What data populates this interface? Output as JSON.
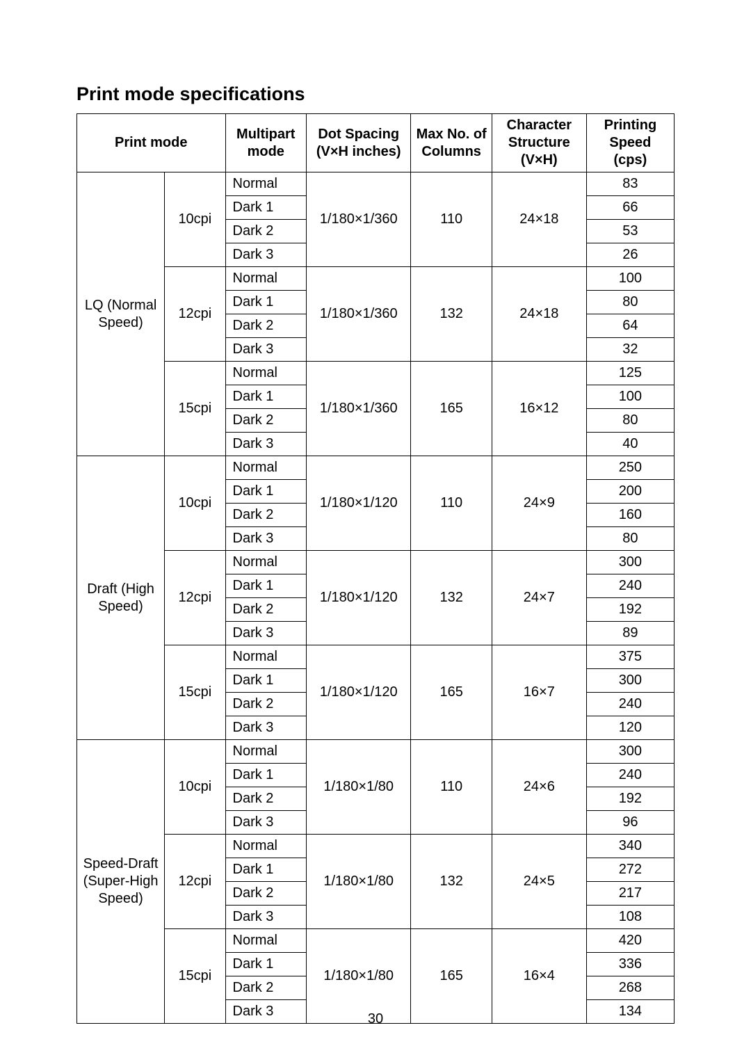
{
  "title": "Print mode specifications",
  "page_number": "30",
  "headers": {
    "print_mode": "Print mode",
    "multipart": "Multipart mode",
    "dot_spacing": "Dot Spacing (V×H inches)",
    "max_cols": "Max No. of Columns",
    "char_struct": "Character Structure (V×H)",
    "speed": "Printing Speed (cps)"
  },
  "multipart_labels": [
    "Normal",
    "Dark 1",
    "Dark 2",
    "Dark 3"
  ],
  "modes": [
    {
      "name": "LQ (Normal Speed)",
      "cpi_groups": [
        {
          "cpi": "10cpi",
          "dot_spacing": "1/180×1/360",
          "max_cols": "110",
          "char_struct": "24×18",
          "speeds": [
            "83",
            "66",
            "53",
            "26"
          ]
        },
        {
          "cpi": "12cpi",
          "dot_spacing": "1/180×1/360",
          "max_cols": "132",
          "char_struct": "24×18",
          "speeds": [
            "100",
            "80",
            "64",
            "32"
          ]
        },
        {
          "cpi": "15cpi",
          "dot_spacing": "1/180×1/360",
          "max_cols": "165",
          "char_struct": "16×12",
          "speeds": [
            "125",
            "100",
            "80",
            "40"
          ]
        }
      ]
    },
    {
      "name": "Draft (High Speed)",
      "cpi_groups": [
        {
          "cpi": "10cpi",
          "dot_spacing": "1/180×1/120",
          "max_cols": "110",
          "char_struct": "24×9",
          "speeds": [
            "250",
            "200",
            "160",
            "80"
          ]
        },
        {
          "cpi": "12cpi",
          "dot_spacing": "1/180×1/120",
          "max_cols": "132",
          "char_struct": "24×7",
          "speeds": [
            "300",
            "240",
            "192",
            "89"
          ]
        },
        {
          "cpi": "15cpi",
          "dot_spacing": "1/180×1/120",
          "max_cols": "165",
          "char_struct": "16×7",
          "speeds": [
            "375",
            "300",
            "240",
            "120"
          ]
        }
      ]
    },
    {
      "name": "Speed-Draft (Super-High Speed)",
      "cpi_groups": [
        {
          "cpi": "10cpi",
          "dot_spacing": "1/180×1/80",
          "max_cols": "110",
          "char_struct": "24×6",
          "speeds": [
            "300",
            "240",
            "192",
            "96"
          ]
        },
        {
          "cpi": "12cpi",
          "dot_spacing": "1/180×1/80",
          "max_cols": "132",
          "char_struct": "24×5",
          "speeds": [
            "340",
            "272",
            "217",
            "108"
          ]
        },
        {
          "cpi": "15cpi",
          "dot_spacing": "1/180×1/80",
          "max_cols": "165",
          "char_struct": "16×4",
          "speeds": [
            "420",
            "336",
            "268",
            "134"
          ]
        }
      ]
    }
  ]
}
